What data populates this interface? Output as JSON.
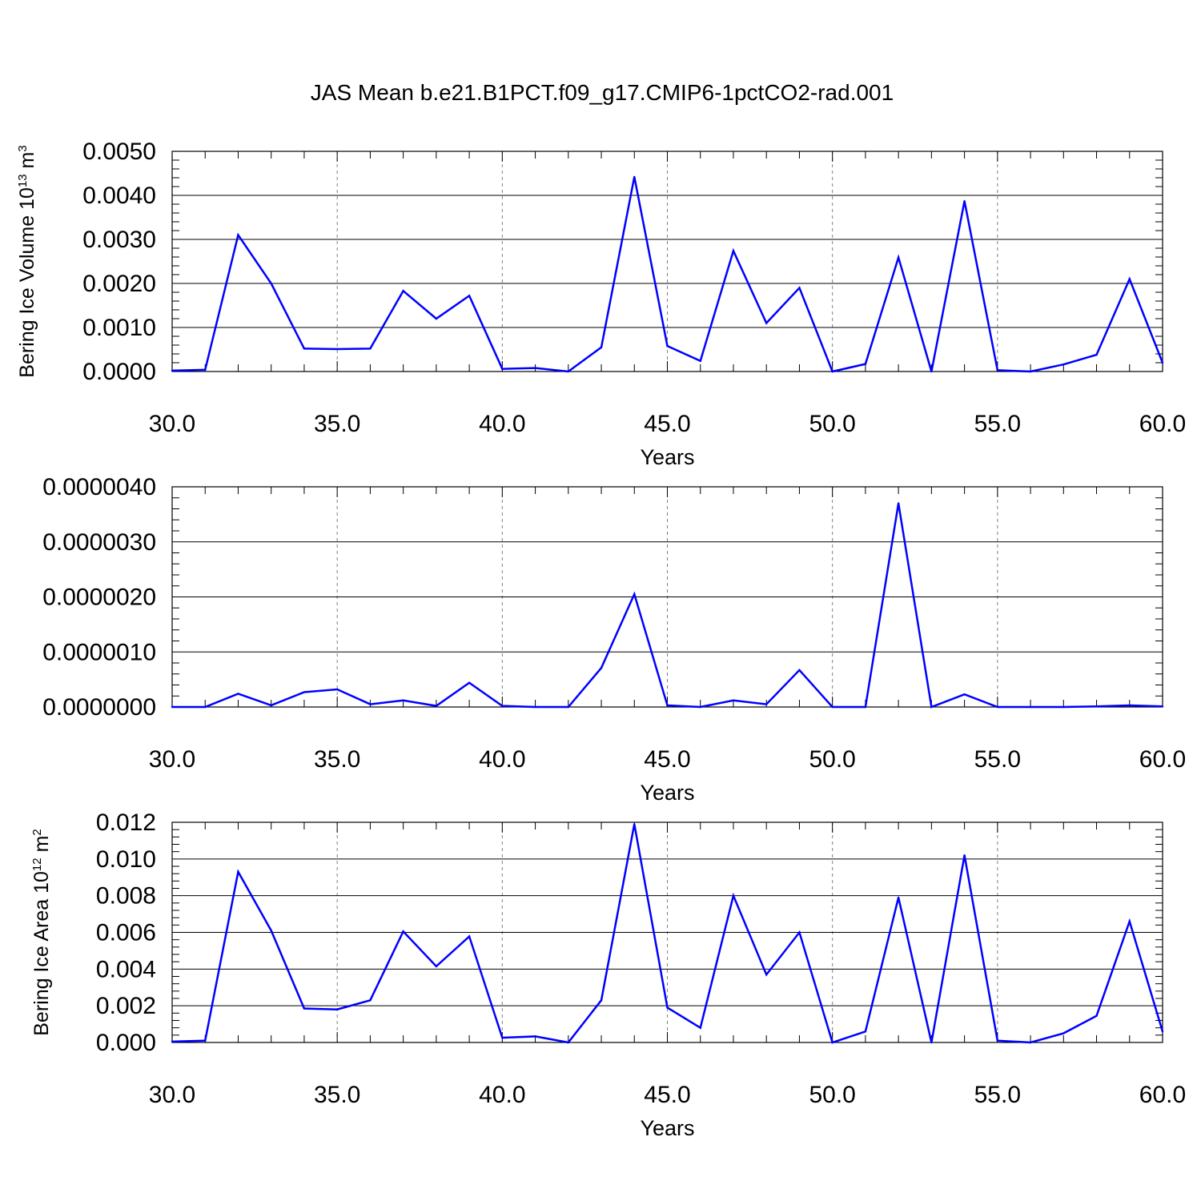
{
  "title": "JAS Mean b.e21.B1PCT.f09_g17.CMIP6-1pctCO2-rad.001",
  "line_color": "#0000ff",
  "grid_color": "#808080",
  "chart_data": [
    {
      "type": "line",
      "xlabel": "Years",
      "ylabel": {
        "text": "Bering Ice Volume 10",
        "sup": "13",
        "unit": " m",
        "unit_sup": "3"
      },
      "xlim": [
        30,
        60
      ],
      "ylim": [
        0,
        0.005
      ],
      "x_ticks": [
        "30.0",
        "35.0",
        "40.0",
        "45.0",
        "50.0",
        "55.0",
        "60.0"
      ],
      "y_ticks": [
        "0.0000",
        "0.0010",
        "0.0020",
        "0.0030",
        "0.0040",
        "0.0050"
      ],
      "y_tick_step": 0.001,
      "grid": "vertical dashed",
      "x": [
        30,
        31,
        32,
        33,
        34,
        35,
        36,
        37,
        38,
        39,
        40,
        41,
        42,
        43,
        44,
        45,
        46,
        47,
        48,
        49,
        50,
        51,
        52,
        53,
        54,
        55,
        56,
        57,
        58,
        59,
        60
      ],
      "values": [
        2e-05,
        4e-05,
        0.0031,
        0.002,
        0.00052,
        0.00051,
        0.00052,
        0.00183,
        0.0012,
        0.00172,
        6e-05,
        8e-05,
        0.0,
        0.00055,
        0.00442,
        0.00058,
        0.00024,
        0.00274,
        0.0011,
        0.0019,
        0.0,
        0.00017,
        0.00259,
        0.0,
        0.00387,
        3e-05,
        0.0,
        0.00016,
        0.00038,
        0.0021,
        0.0002
      ]
    },
    {
      "type": "line",
      "xlabel": "Years",
      "ylabel": null,
      "xlim": [
        30,
        60
      ],
      "ylim": [
        0,
        4e-06
      ],
      "x_ticks": [
        "30.0",
        "35.0",
        "40.0",
        "45.0",
        "50.0",
        "55.0",
        "60.0"
      ],
      "y_ticks": [
        "0.0000000",
        "0.0000010",
        "0.0000020",
        "0.0000030",
        "0.0000040"
      ],
      "y_tick_step": 1e-06,
      "grid": "vertical dashed",
      "x": [
        30,
        31,
        32,
        33,
        34,
        35,
        36,
        37,
        38,
        39,
        40,
        41,
        42,
        43,
        44,
        45,
        46,
        47,
        48,
        49,
        50,
        51,
        52,
        53,
        54,
        55,
        56,
        57,
        58,
        59,
        60
      ],
      "values": [
        0.0,
        0.0,
        2.4e-07,
        3e-08,
        2.7e-07,
        3.2e-07,
        5e-08,
        1.2e-07,
        2e-08,
        4.4e-07,
        2e-08,
        0.0,
        0.0,
        7.1e-07,
        2.05e-06,
        3e-08,
        0.0,
        1.2e-07,
        5e-08,
        6.7e-07,
        0.0,
        0.0,
        3.7e-06,
        0.0,
        2.3e-07,
        0.0,
        0.0,
        0.0,
        1e-08,
        3e-08,
        1e-08
      ]
    },
    {
      "type": "line",
      "xlabel": "Years",
      "ylabel": {
        "text": "Bering Ice Area 10",
        "sup": "12",
        "unit": " m",
        "unit_sup": "2"
      },
      "xlim": [
        30,
        60
      ],
      "ylim": [
        0,
        0.012
      ],
      "x_ticks": [
        "30.0",
        "35.0",
        "40.0",
        "45.0",
        "50.0",
        "55.0",
        "60.0"
      ],
      "y_ticks": [
        "0.000",
        "0.002",
        "0.004",
        "0.006",
        "0.008",
        "0.010",
        "0.012"
      ],
      "y_tick_step": 0.002,
      "grid": "vertical dashed",
      "x": [
        30,
        31,
        32,
        33,
        34,
        35,
        36,
        37,
        38,
        39,
        40,
        41,
        42,
        43,
        44,
        45,
        46,
        47,
        48,
        49,
        50,
        51,
        52,
        53,
        54,
        55,
        56,
        57,
        58,
        59,
        60
      ],
      "values": [
        5e-05,
        0.0001,
        0.0093,
        0.0061,
        0.00185,
        0.0018,
        0.0023,
        0.00605,
        0.00415,
        0.00578,
        0.00026,
        0.00033,
        0.0,
        0.0023,
        0.0119,
        0.0019,
        0.0008,
        0.008,
        0.0037,
        0.006,
        0.0,
        0.0006,
        0.0079,
        0.0,
        0.0102,
        0.0001,
        0.0,
        0.0005,
        0.00145,
        0.0066,
        0.0006
      ]
    }
  ]
}
